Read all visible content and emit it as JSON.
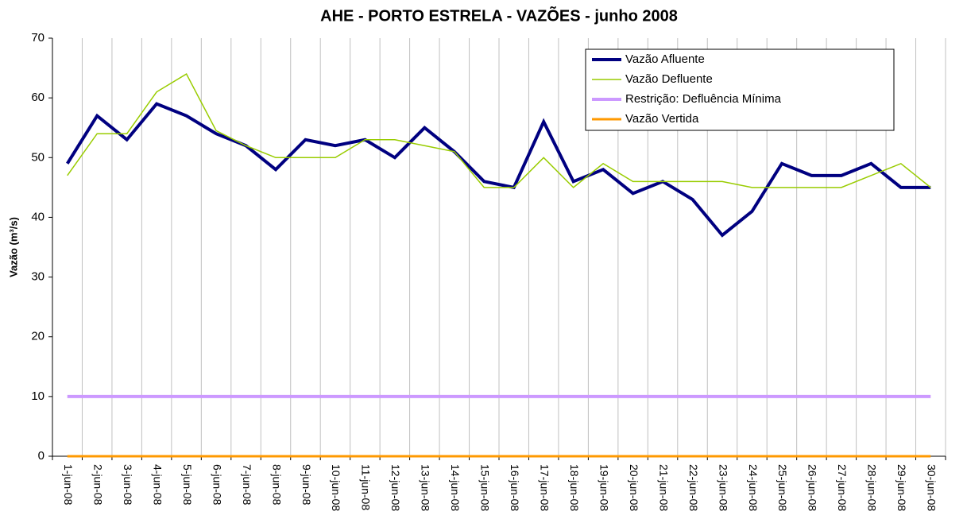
{
  "chart_data": {
    "type": "line",
    "title": "AHE - PORTO ESTRELA - VAZÕES - junho 2008",
    "y_label": "Vazão (m³/s)",
    "categories": [
      "1-jun-08",
      "2-jun-08",
      "3-jun-08",
      "4-jun-08",
      "5-jun-08",
      "6-jun-08",
      "7-jun-08",
      "8-jun-08",
      "9-jun-08",
      "10-jun-08",
      "11-jun-08",
      "12-jun-08",
      "13-jun-08",
      "14-jun-08",
      "15-jun-08",
      "16-jun-08",
      "17-jun-08",
      "18-jun-08",
      "19-jun-08",
      "20-jun-08",
      "21-jun-08",
      "22-jun-08",
      "23-jun-08",
      "24-jun-08",
      "25-jun-08",
      "26-jun-08",
      "27-jun-08",
      "28-jun-08",
      "29-jun-08",
      "30-jun-08"
    ],
    "series": [
      {
        "name": "Vazão Afluente",
        "color": "#000080",
        "width": 4,
        "values": [
          49,
          57,
          53,
          59,
          57,
          54,
          52,
          48,
          53,
          52,
          53,
          50,
          55,
          51,
          46,
          45,
          56,
          46,
          48,
          44,
          46,
          43,
          37,
          41,
          49,
          47,
          47,
          49,
          45,
          45
        ]
      },
      {
        "name": "Vazão Defluente",
        "color": "#99cc00",
        "width": 1.5,
        "values": [
          47,
          54,
          54,
          61,
          64,
          54.5,
          52,
          50,
          50,
          50,
          53,
          53,
          52,
          51,
          45,
          45,
          50,
          45,
          49,
          46,
          46,
          46,
          46,
          45,
          45,
          45,
          45,
          47,
          49,
          45
        ]
      },
      {
        "name": "Restrição: Defluência Mínima",
        "color": "#cc99ff",
        "width": 4,
        "values": [
          10,
          10,
          10,
          10,
          10,
          10,
          10,
          10,
          10,
          10,
          10,
          10,
          10,
          10,
          10,
          10,
          10,
          10,
          10,
          10,
          10,
          10,
          10,
          10,
          10,
          10,
          10,
          10,
          10,
          10
        ]
      },
      {
        "name": "Vazão Vertida",
        "color": "#ff9900",
        "width": 3,
        "values": [
          0,
          0,
          0,
          0,
          0,
          0,
          0,
          0,
          0,
          0,
          0,
          0,
          0,
          0,
          0,
          0,
          0,
          0,
          0,
          0,
          0,
          0,
          0,
          0,
          0,
          0,
          0,
          0,
          0,
          0
        ]
      }
    ],
    "ylim": [
      0,
      70
    ],
    "yticks": [
      0,
      10,
      20,
      30,
      40,
      50,
      60,
      70
    ],
    "grid": true,
    "legend": "top-right"
  }
}
